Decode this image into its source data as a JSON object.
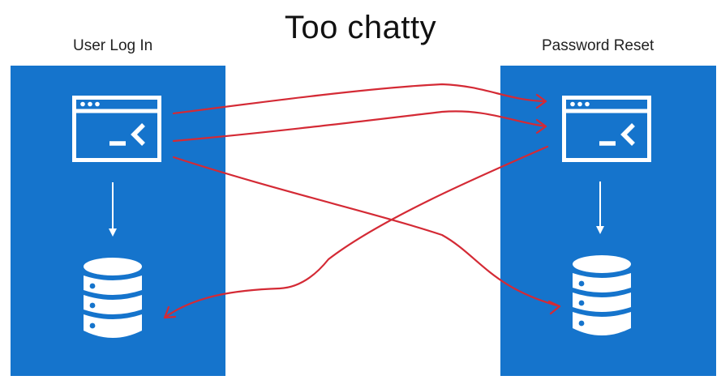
{
  "title": "Too chatty",
  "services": [
    {
      "label": "User Log In"
    },
    {
      "label": "Password Reset"
    }
  ],
  "icons": {
    "terminal": "terminal-window-icon",
    "database": "database-icon",
    "arrow": "down-arrow-icon"
  },
  "colors": {
    "service_bg": "#1574cc",
    "icon": "#ffffff",
    "flow_arrow": "#d42a35"
  }
}
